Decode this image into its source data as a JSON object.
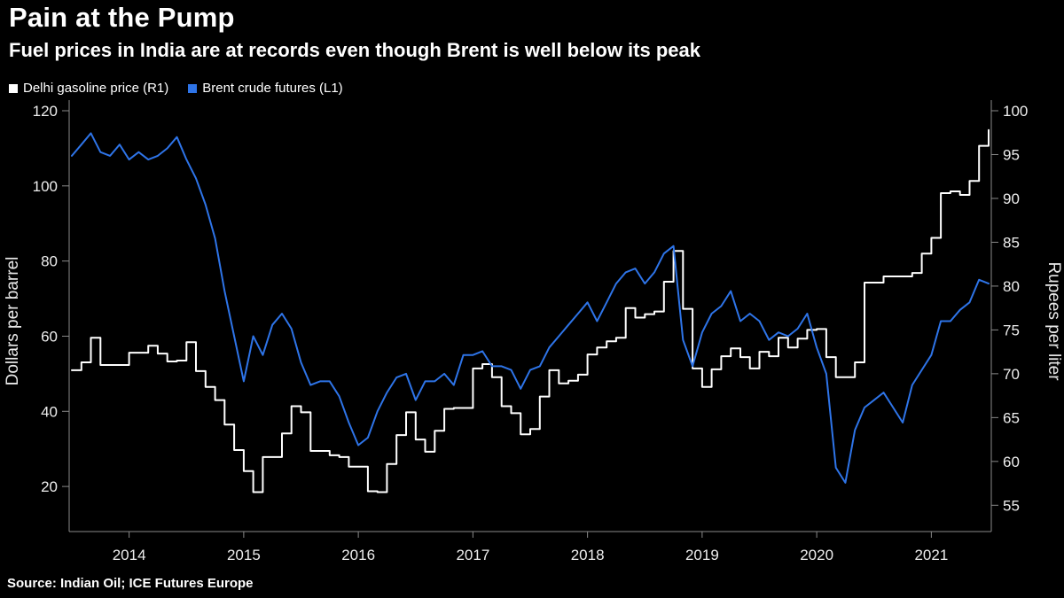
{
  "page": {
    "background": "#000000"
  },
  "chart_data": {
    "type": "line",
    "title": "Pain at the Pump",
    "subtitle": "Fuel prices in India are at records even though Brent is well below its peak",
    "source": "Source: Indian Oil; ICE Futures Europe",
    "legend_position": "top-left",
    "grid": false,
    "axis_color": "#8a8a8a",
    "x_start": {
      "year": 2013,
      "month": 7
    },
    "x_frequency": "monthly",
    "x_year_ticks": [
      2014,
      2015,
      2016,
      2017,
      2018,
      2019,
      2020,
      2021
    ],
    "left_axis": {
      "label": "Dollars per barrel",
      "ticks": [
        20,
        40,
        60,
        80,
        100,
        120
      ],
      "ylim": [
        8,
        120
      ]
    },
    "right_axis": {
      "label": "Rupees per liter",
      "ticks": [
        55,
        60,
        65,
        70,
        75,
        80,
        85,
        90,
        95,
        100
      ],
      "ylim": [
        52,
        100
      ]
    },
    "series": [
      {
        "name": "Delhi gasoline price (R1)",
        "axis": "right",
        "units": "rupees per liter",
        "color": "#ffffff",
        "line_style": "step",
        "values": [
          70.4,
          71.3,
          74.1,
          71.0,
          71.0,
          71.0,
          72.4,
          72.4,
          73.2,
          72.3,
          71.4,
          71.5,
          73.6,
          70.3,
          68.5,
          67.0,
          64.2,
          61.3,
          58.9,
          56.5,
          60.5,
          60.5,
          63.2,
          66.3,
          65.6,
          61.2,
          61.2,
          60.7,
          60.5,
          59.4,
          59.4,
          56.6,
          56.5,
          59.7,
          63.0,
          65.6,
          62.5,
          61.1,
          63.5,
          66.0,
          66.1,
          66.1,
          70.6,
          71.1,
          69.6,
          66.3,
          65.5,
          63.1,
          63.7,
          67.4,
          70.4,
          68.9,
          69.2,
          69.9,
          72.2,
          73.0,
          73.7,
          74.1,
          77.5,
          76.4,
          76.8,
          77.1,
          80.5,
          84.0,
          77.4,
          70.6,
          68.5,
          70.5,
          72.0,
          72.9,
          71.9,
          70.6,
          72.5,
          72.0,
          74.1,
          73.0,
          74.0,
          75.0,
          75.1,
          71.9,
          69.6,
          69.6,
          71.3,
          80.4,
          80.4,
          81.1,
          81.1,
          81.1,
          81.5,
          83.7,
          85.5,
          90.6,
          90.8,
          90.4,
          92.0,
          96.0,
          97.8
        ]
      },
      {
        "name": "Brent crude futures (L1)",
        "axis": "left",
        "units": "dollars per barrel",
        "color": "#2e74e8",
        "line_style": "line",
        "values": [
          108,
          111,
          114,
          109,
          108,
          111,
          107,
          109,
          107,
          108,
          110,
          113,
          107,
          102,
          95,
          86,
          72,
          60,
          48,
          60,
          55,
          63,
          66,
          62,
          53,
          47,
          48,
          48,
          44,
          37,
          31,
          33,
          40,
          45,
          49,
          50,
          43,
          48,
          48,
          50,
          47,
          55,
          55,
          56,
          52,
          52,
          51,
          46,
          51,
          52,
          57,
          60,
          63,
          66,
          69,
          64,
          69,
          74,
          77,
          78,
          74,
          77,
          82,
          84,
          59,
          52,
          61,
          66,
          68,
          72,
          64,
          66,
          64,
          59,
          61,
          60,
          62,
          66,
          57,
          50,
          25,
          21,
          35,
          41,
          43,
          45,
          41,
          37,
          47,
          51,
          55,
          64,
          64,
          67,
          69,
          75,
          74
        ]
      }
    ]
  }
}
